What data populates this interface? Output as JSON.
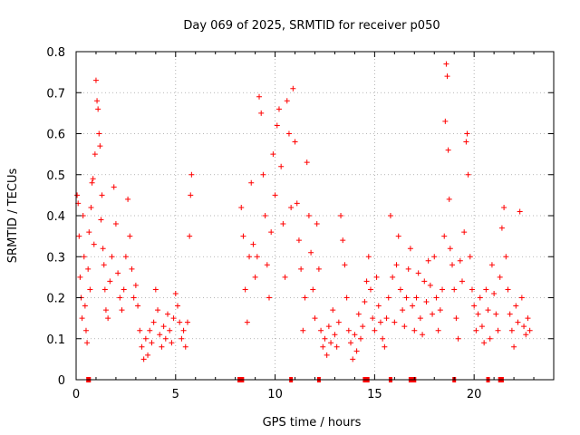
{
  "chart_data": {
    "type": "scatter",
    "title": "Day 069 of 2025, SRMTID for receiver p050",
    "xlabel": "GPS time / hours",
    "ylabel": "SRMTID / TECUs",
    "xlim": [
      0,
      24
    ],
    "ylim": [
      0,
      0.8
    ],
    "x_ticks": [
      0,
      5,
      10,
      15,
      20
    ],
    "y_ticks": [
      0,
      0.1,
      0.2,
      0.3,
      0.4,
      0.5,
      0.6,
      0.7,
      0.8
    ],
    "x_tick_labels": [
      "0",
      "5",
      "10",
      "15",
      "20"
    ],
    "y_tick_labels": [
      "0",
      "0.1",
      "0.2",
      "0.3",
      "0.4",
      "0.5",
      "0.6",
      "0.7",
      "0.8"
    ],
    "grid": true,
    "marker": "+",
    "color": "#ff0000",
    "series": [
      {
        "name": "p050",
        "points": [
          [
            0.05,
            0.45
          ],
          [
            0.1,
            0.43
          ],
          [
            0.15,
            0.35
          ],
          [
            0.2,
            0.25
          ],
          [
            0.25,
            0.2
          ],
          [
            0.3,
            0.15
          ],
          [
            0.35,
            0.4
          ],
          [
            0.4,
            0.3
          ],
          [
            0.45,
            0.18
          ],
          [
            0.5,
            0.12
          ],
          [
            0.55,
            0.09
          ],
          [
            0.6,
            0.27
          ],
          [
            0.65,
            0.36
          ],
          [
            0.7,
            0.22
          ],
          [
            0.75,
            0.42
          ],
          [
            0.8,
            0.48
          ],
          [
            0.85,
            0.49
          ],
          [
            0.9,
            0.33
          ],
          [
            0.95,
            0.55
          ],
          [
            1.0,
            0.73
          ],
          [
            1.05,
            0.68
          ],
          [
            1.1,
            0.66
          ],
          [
            1.15,
            0.6
          ],
          [
            1.2,
            0.57
          ],
          [
            1.25,
            0.39
          ],
          [
            1.3,
            0.45
          ],
          [
            1.35,
            0.32
          ],
          [
            1.4,
            0.28
          ],
          [
            1.45,
            0.22
          ],
          [
            1.5,
            0.17
          ],
          [
            1.6,
            0.15
          ],
          [
            1.7,
            0.24
          ],
          [
            1.8,
            0.3
          ],
          [
            1.9,
            0.47
          ],
          [
            2.0,
            0.38
          ],
          [
            2.1,
            0.26
          ],
          [
            2.2,
            0.2
          ],
          [
            2.3,
            0.17
          ],
          [
            2.4,
            0.22
          ],
          [
            2.5,
            0.3
          ],
          [
            2.6,
            0.44
          ],
          [
            2.7,
            0.35
          ],
          [
            2.8,
            0.27
          ],
          [
            2.9,
            0.2
          ],
          [
            3.0,
            0.23
          ],
          [
            3.1,
            0.18
          ],
          [
            3.2,
            0.12
          ],
          [
            3.3,
            0.08
          ],
          [
            3.4,
            0.05
          ],
          [
            3.5,
            0.1
          ],
          [
            3.6,
            0.06
          ],
          [
            3.7,
            0.12
          ],
          [
            3.8,
            0.09
          ],
          [
            3.9,
            0.14
          ],
          [
            4.0,
            0.22
          ],
          [
            4.1,
            0.17
          ],
          [
            4.2,
            0.11
          ],
          [
            4.3,
            0.08
          ],
          [
            4.4,
            0.13
          ],
          [
            4.5,
            0.1
          ],
          [
            4.6,
            0.16
          ],
          [
            4.7,
            0.12
          ],
          [
            4.8,
            0.09
          ],
          [
            4.9,
            0.15
          ],
          [
            5.0,
            0.21
          ],
          [
            5.1,
            0.18
          ],
          [
            5.2,
            0.14
          ],
          [
            5.3,
            0.1
          ],
          [
            5.4,
            0.12
          ],
          [
            5.5,
            0.08
          ],
          [
            5.6,
            0.14
          ],
          [
            5.7,
            0.35
          ],
          [
            5.75,
            0.45
          ],
          [
            5.8,
            0.5
          ],
          [
            8.3,
            0.42
          ],
          [
            8.4,
            0.35
          ],
          [
            8.5,
            0.22
          ],
          [
            8.6,
            0.14
          ],
          [
            8.7,
            0.3
          ],
          [
            8.8,
            0.48
          ],
          [
            8.9,
            0.33
          ],
          [
            9.0,
            0.25
          ],
          [
            9.1,
            0.3
          ],
          [
            9.2,
            0.69
          ],
          [
            9.3,
            0.65
          ],
          [
            9.4,
            0.5
          ],
          [
            9.5,
            0.4
          ],
          [
            9.6,
            0.28
          ],
          [
            9.7,
            0.2
          ],
          [
            9.8,
            0.36
          ],
          [
            9.9,
            0.55
          ],
          [
            10.0,
            0.45
          ],
          [
            10.1,
            0.62
          ],
          [
            10.2,
            0.66
          ],
          [
            10.3,
            0.52
          ],
          [
            10.4,
            0.38
          ],
          [
            10.5,
            0.25
          ],
          [
            10.6,
            0.68
          ],
          [
            10.7,
            0.6
          ],
          [
            10.8,
            0.42
          ],
          [
            10.9,
            0.71
          ],
          [
            11.0,
            0.58
          ],
          [
            11.1,
            0.43
          ],
          [
            11.2,
            0.34
          ],
          [
            11.3,
            0.27
          ],
          [
            11.4,
            0.12
          ],
          [
            11.5,
            0.2
          ],
          [
            11.6,
            0.53
          ],
          [
            11.7,
            0.4
          ],
          [
            11.8,
            0.31
          ],
          [
            11.9,
            0.22
          ],
          [
            12.0,
            0.15
          ],
          [
            12.1,
            0.38
          ],
          [
            12.2,
            0.27
          ],
          [
            12.3,
            0.12
          ],
          [
            12.4,
            0.08
          ],
          [
            12.5,
            0.1
          ],
          [
            12.6,
            0.06
          ],
          [
            12.7,
            0.13
          ],
          [
            12.8,
            0.09
          ],
          [
            12.9,
            0.17
          ],
          [
            13.0,
            0.11
          ],
          [
            13.1,
            0.08
          ],
          [
            13.2,
            0.14
          ],
          [
            13.3,
            0.4
          ],
          [
            13.4,
            0.34
          ],
          [
            13.5,
            0.28
          ],
          [
            13.6,
            0.2
          ],
          [
            13.7,
            0.12
          ],
          [
            13.8,
            0.09
          ],
          [
            13.9,
            0.05
          ],
          [
            14.0,
            0.11
          ],
          [
            14.1,
            0.07
          ],
          [
            14.2,
            0.16
          ],
          [
            14.3,
            0.1
          ],
          [
            14.4,
            0.13
          ],
          [
            14.5,
            0.19
          ],
          [
            14.6,
            0.24
          ],
          [
            14.7,
            0.3
          ],
          [
            14.8,
            0.22
          ],
          [
            14.9,
            0.15
          ],
          [
            15.0,
            0.12
          ],
          [
            15.1,
            0.25
          ],
          [
            15.2,
            0.18
          ],
          [
            15.3,
            0.14
          ],
          [
            15.4,
            0.1
          ],
          [
            15.5,
            0.08
          ],
          [
            15.6,
            0.15
          ],
          [
            15.7,
            0.2
          ],
          [
            15.8,
            0.4
          ],
          [
            15.9,
            0.25
          ],
          [
            16.0,
            0.14
          ],
          [
            16.1,
            0.28
          ],
          [
            16.2,
            0.35
          ],
          [
            16.3,
            0.22
          ],
          [
            16.4,
            0.17
          ],
          [
            16.5,
            0.13
          ],
          [
            16.6,
            0.2
          ],
          [
            16.7,
            0.27
          ],
          [
            16.8,
            0.32
          ],
          [
            16.9,
            0.18
          ],
          [
            17.0,
            0.12
          ],
          [
            17.1,
            0.2
          ],
          [
            17.2,
            0.26
          ],
          [
            17.3,
            0.15
          ],
          [
            17.4,
            0.11
          ],
          [
            17.5,
            0.24
          ],
          [
            17.6,
            0.19
          ],
          [
            17.7,
            0.29
          ],
          [
            17.8,
            0.23
          ],
          [
            17.9,
            0.16
          ],
          [
            18.0,
            0.3
          ],
          [
            18.1,
            0.2
          ],
          [
            18.2,
            0.12
          ],
          [
            18.3,
            0.17
          ],
          [
            18.4,
            0.22
          ],
          [
            18.5,
            0.35
          ],
          [
            18.55,
            0.63
          ],
          [
            18.6,
            0.77
          ],
          [
            18.65,
            0.74
          ],
          [
            18.7,
            0.56
          ],
          [
            18.75,
            0.44
          ],
          [
            18.8,
            0.32
          ],
          [
            18.9,
            0.28
          ],
          [
            19.0,
            0.22
          ],
          [
            19.1,
            0.15
          ],
          [
            19.2,
            0.1
          ],
          [
            19.3,
            0.29
          ],
          [
            19.4,
            0.24
          ],
          [
            19.5,
            0.36
          ],
          [
            19.6,
            0.58
          ],
          [
            19.65,
            0.6
          ],
          [
            19.7,
            0.5
          ],
          [
            19.8,
            0.3
          ],
          [
            19.9,
            0.22
          ],
          [
            20.0,
            0.18
          ],
          [
            20.1,
            0.12
          ],
          [
            20.2,
            0.16
          ],
          [
            20.3,
            0.2
          ],
          [
            20.4,
            0.13
          ],
          [
            20.5,
            0.09
          ],
          [
            20.6,
            0.22
          ],
          [
            20.7,
            0.17
          ],
          [
            20.8,
            0.1
          ],
          [
            20.9,
            0.28
          ],
          [
            21.0,
            0.21
          ],
          [
            21.1,
            0.16
          ],
          [
            21.2,
            0.12
          ],
          [
            21.3,
            0.25
          ],
          [
            21.4,
            0.37
          ],
          [
            21.5,
            0.42
          ],
          [
            21.6,
            0.3
          ],
          [
            21.7,
            0.22
          ],
          [
            21.8,
            0.16
          ],
          [
            21.9,
            0.12
          ],
          [
            22.0,
            0.08
          ],
          [
            22.1,
            0.18
          ],
          [
            22.2,
            0.14
          ],
          [
            22.3,
            0.41
          ],
          [
            22.4,
            0.2
          ],
          [
            22.5,
            0.13
          ],
          [
            22.6,
            0.11
          ],
          [
            22.7,
            0.15
          ],
          [
            22.8,
            0.12
          ]
        ],
        "zero_points": [
          0.6,
          0.65,
          8.2,
          8.25,
          8.3,
          8.35,
          10.8,
          12.2,
          14.5,
          14.55,
          14.6,
          14.65,
          15.8,
          16.8,
          16.85,
          16.9,
          16.95,
          17.0,
          19.0,
          20.7,
          21.3,
          21.35,
          21.4
        ]
      }
    ]
  }
}
